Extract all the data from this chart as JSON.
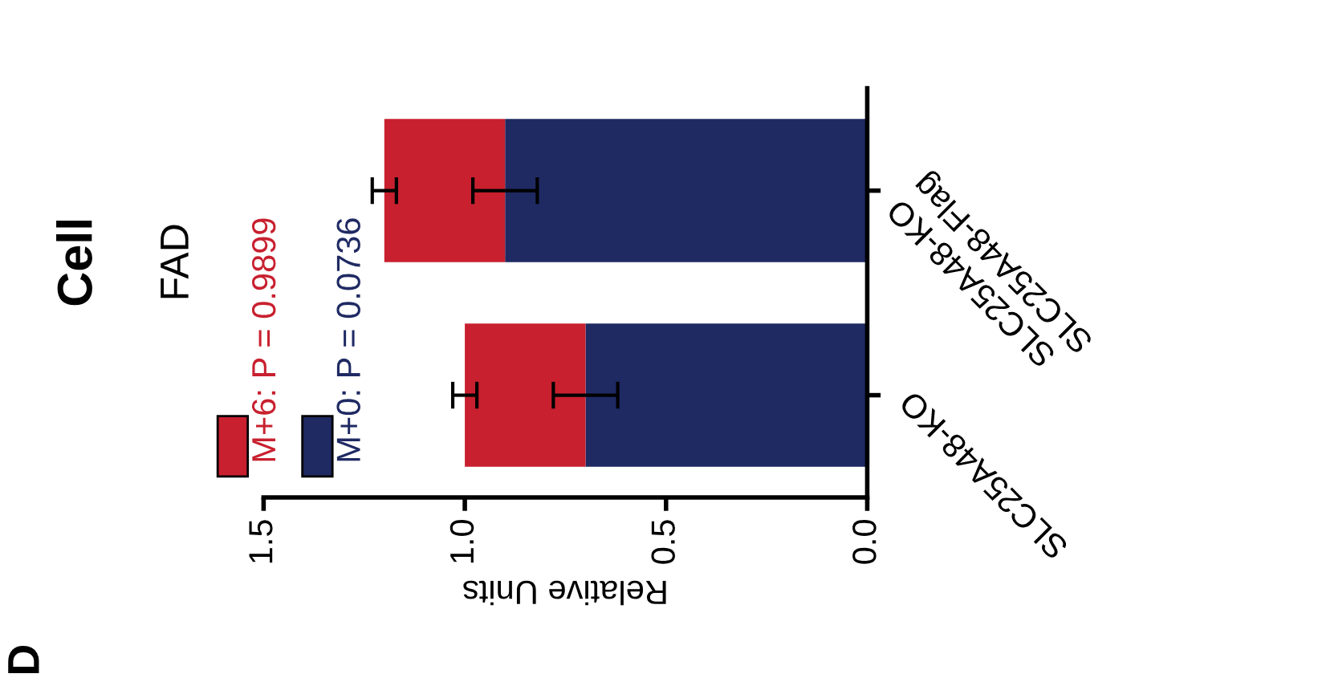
{
  "chart_data": {
    "type": "bar",
    "orientation": "horizontal",
    "stacked": true,
    "title": "Cell",
    "legend_title": "FAD",
    "xlabel": "Relative Units",
    "categories": [
      "SLC25A48-KO\nSLC25A48-Flag",
      "SLC25A48-KO"
    ],
    "series": [
      {
        "name": "M+0: P = 0.0736",
        "color": "#1f2a63",
        "values": [
          0.9,
          0.7
        ],
        "errors": [
          0.08,
          0.08
        ]
      },
      {
        "name": "M+6: P = 0.9899",
        "color": "#c8202f",
        "values": [
          0.3,
          0.3
        ],
        "errors": [
          0.03,
          0.03
        ]
      }
    ],
    "xlim": [
      1.5,
      0
    ],
    "xticks": [
      {
        "value": 1.5,
        "label": "1.5"
      },
      {
        "value": 1.0,
        "label": "1.0"
      },
      {
        "value": 0.5,
        "label": "0.5"
      },
      {
        "value": 0,
        "label": "0.0"
      }
    ],
    "grid": false,
    "legend": "left",
    "annotations": [
      "D"
    ]
  }
}
